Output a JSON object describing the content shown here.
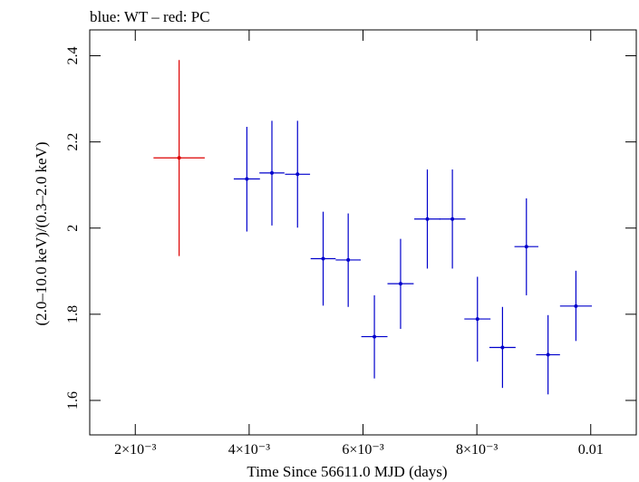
{
  "chart_data": {
    "type": "scatter",
    "title": "blue: WT – red: PC",
    "xlabel": "Time Since 56611.0 MJD (days)",
    "ylabel": "(2.0–10.0 keV)/(0.3–2.0 keV)",
    "xlim": [
      0.0012,
      0.0108
    ],
    "ylim": [
      1.52,
      2.46
    ],
    "x_ticks": [
      {
        "value": 0.002,
        "label": "2×10⁻³"
      },
      {
        "value": 0.004,
        "label": "4×10⁻³"
      },
      {
        "value": 0.006,
        "label": "6×10⁻³"
      },
      {
        "value": 0.008,
        "label": "8×10⁻³"
      },
      {
        "value": 0.01,
        "label": "0.01"
      }
    ],
    "y_ticks": [
      {
        "value": 1.6,
        "label": "1.6"
      },
      {
        "value": 1.8,
        "label": "1.8"
      },
      {
        "value": 2.0,
        "label": "2"
      },
      {
        "value": 2.2,
        "label": "2.2"
      },
      {
        "value": 2.4,
        "label": "2.4"
      }
    ],
    "grid": false,
    "series": [
      {
        "color": "#dd0000",
        "points": [
          {
            "x": 0.00277,
            "y": 2.163,
            "xerr_lo": 0.00045,
            "xerr_hi": 0.00045,
            "y_lo": 1.935,
            "y_hi": 2.39
          }
        ]
      },
      {
        "color": "#0000cc",
        "points": [
          {
            "x": 0.00396,
            "y": 2.114,
            "xerr_lo": 0.00023,
            "xerr_hi": 0.00023,
            "y_lo": 1.992,
            "y_hi": 2.235
          },
          {
            "x": 0.0044,
            "y": 2.128,
            "xerr_lo": 0.00022,
            "xerr_hi": 0.00022,
            "y_lo": 2.006,
            "y_hi": 2.249
          },
          {
            "x": 0.00485,
            "y": 2.125,
            "xerr_lo": 0.00022,
            "xerr_hi": 0.00022,
            "y_lo": 2.001,
            "y_hi": 2.249
          },
          {
            "x": 0.0053,
            "y": 1.929,
            "xerr_lo": 0.00022,
            "xerr_hi": 0.00022,
            "y_lo": 1.82,
            "y_hi": 2.038
          },
          {
            "x": 0.00574,
            "y": 1.926,
            "xerr_lo": 0.00022,
            "xerr_hi": 0.00022,
            "y_lo": 1.817,
            "y_hi": 2.034
          },
          {
            "x": 0.0062,
            "y": 1.748,
            "xerr_lo": 0.00023,
            "xerr_hi": 0.00023,
            "y_lo": 1.651,
            "y_hi": 1.844
          },
          {
            "x": 0.00666,
            "y": 1.871,
            "xerr_lo": 0.00023,
            "xerr_hi": 0.00023,
            "y_lo": 1.766,
            "y_hi": 1.975
          },
          {
            "x": 0.00713,
            "y": 2.021,
            "xerr_lo": 0.00023,
            "xerr_hi": 0.00023,
            "y_lo": 1.906,
            "y_hi": 2.136
          },
          {
            "x": 0.00757,
            "y": 2.021,
            "xerr_lo": 0.00023,
            "xerr_hi": 0.00023,
            "y_lo": 1.906,
            "y_hi": 2.136
          },
          {
            "x": 0.00801,
            "y": 1.789,
            "xerr_lo": 0.00023,
            "xerr_hi": 0.00023,
            "y_lo": 1.69,
            "y_hi": 1.887
          },
          {
            "x": 0.00845,
            "y": 1.723,
            "xerr_lo": 0.00023,
            "xerr_hi": 0.00023,
            "y_lo": 1.629,
            "y_hi": 1.817
          },
          {
            "x": 0.00887,
            "y": 1.957,
            "xerr_lo": 0.00021,
            "xerr_hi": 0.00021,
            "y_lo": 1.844,
            "y_hi": 2.069
          },
          {
            "x": 0.00925,
            "y": 1.706,
            "xerr_lo": 0.00021,
            "xerr_hi": 0.00021,
            "y_lo": 1.614,
            "y_hi": 1.798
          },
          {
            "x": 0.00974,
            "y": 1.819,
            "xerr_lo": 0.00028,
            "xerr_hi": 0.00028,
            "y_lo": 1.738,
            "y_hi": 1.901
          }
        ]
      }
    ]
  }
}
